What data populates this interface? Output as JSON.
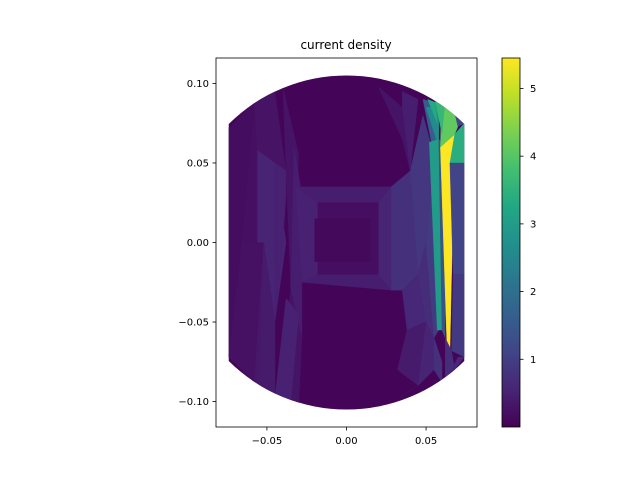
{
  "chart_data": {
    "type": "heatmap",
    "title": "current density",
    "xlabel": "",
    "ylabel": "",
    "xlim": [
      -0.082,
      0.082
    ],
    "ylim": [
      -0.116,
      0.116
    ],
    "xticks": [
      -0.05,
      0.0,
      0.05
    ],
    "xtick_labels": [
      "−0.05",
      "0.00",
      "0.05"
    ],
    "yticks": [
      -0.1,
      -0.05,
      0.0,
      0.05,
      0.1
    ],
    "ytick_labels": [
      "−0.10",
      "−0.05",
      "0.00",
      "0.05",
      "0.10"
    ],
    "colormap": "viridis",
    "colorbar": {
      "range": [
        0.0,
        5.45
      ],
      "ticks": [
        1,
        2,
        3,
        4,
        5
      ],
      "tick_labels": [
        "1",
        "2",
        "3",
        "4",
        "5"
      ]
    },
    "domain": {
      "shape": "circle clipped at left and right",
      "radius": 0.105,
      "x_clip": [
        -0.074,
        0.074
      ]
    },
    "grid": false,
    "background_value": 0.05,
    "cells": [
      {
        "poly": [
          [
            -0.074,
            -0.072
          ],
          [
            -0.074,
            0.072
          ],
          [
            -0.058,
            0.088
          ],
          [
            -0.066,
            0.0
          ]
        ],
        "value": 0.18
      },
      {
        "poly": [
          [
            -0.058,
            0.088
          ],
          [
            -0.052,
            0.0
          ],
          [
            -0.066,
            0.0
          ]
        ],
        "value": 0.22
      },
      {
        "poly": [
          [
            -0.058,
            0.088
          ],
          [
            -0.045,
            0.095
          ],
          [
            -0.038,
            0.045
          ],
          [
            -0.052,
            0.0
          ]
        ],
        "value": 0.28
      },
      {
        "poly": [
          [
            -0.056,
            0.058
          ],
          [
            -0.045,
            0.05
          ],
          [
            -0.038,
            0.0
          ],
          [
            -0.045,
            -0.05
          ],
          [
            -0.056,
            -0.04
          ]
        ],
        "value": 0.55
      },
      {
        "poly": [
          [
            -0.066,
            0.0
          ],
          [
            -0.052,
            0.0
          ],
          [
            -0.058,
            -0.088
          ],
          [
            -0.074,
            -0.072
          ]
        ],
        "value": 0.25
      },
      {
        "poly": [
          [
            -0.052,
            0.0
          ],
          [
            -0.045,
            -0.05
          ],
          [
            -0.045,
            -0.098
          ],
          [
            -0.058,
            -0.088
          ]
        ],
        "value": 0.35
      },
      {
        "poly": [
          [
            -0.045,
            0.05
          ],
          [
            -0.038,
            0.045
          ],
          [
            -0.038,
            0.03
          ],
          [
            -0.04,
            0.0
          ],
          [
            -0.045,
            -0.05
          ]
        ],
        "value": 0.5
      },
      {
        "poly": [
          [
            -0.04,
            0.098
          ],
          [
            -0.03,
            0.055
          ],
          [
            -0.035,
            -0.03
          ],
          [
            -0.038,
            0.045
          ]
        ],
        "value": 0.3
      },
      {
        "poly": [
          [
            -0.033,
            0.06
          ],
          [
            -0.035,
            -0.03
          ],
          [
            -0.028,
            -0.06
          ],
          [
            -0.028,
            0.03
          ]
        ],
        "value": 0.45
      },
      {
        "poly": [
          [
            -0.035,
            -0.03
          ],
          [
            -0.045,
            -0.098
          ],
          [
            -0.03,
            -0.102
          ],
          [
            -0.028,
            -0.06
          ]
        ],
        "value": 0.3
      },
      {
        "poly": [
          [
            -0.038,
            -0.035
          ],
          [
            -0.03,
            -0.045
          ],
          [
            -0.035,
            -0.1
          ],
          [
            -0.045,
            -0.098
          ]
        ],
        "value": 0.5
      },
      {
        "poly": [
          [
            -0.052,
            -0.0
          ],
          [
            -0.045,
            -0.05
          ],
          [
            -0.045,
            -0.095
          ],
          [
            -0.055,
            -0.09
          ]
        ],
        "value": 0.4
      },
      {
        "poly": [
          [
            -0.032,
            0.035
          ],
          [
            -0.018,
            0.025
          ],
          [
            0.02,
            0.025
          ],
          [
            0.028,
            0.035
          ]
        ],
        "value": 0.45
      },
      {
        "poly": [
          [
            -0.032,
            0.035
          ],
          [
            -0.028,
            -0.025
          ],
          [
            -0.018,
            -0.02
          ],
          [
            -0.018,
            0.025
          ]
        ],
        "value": 0.5
      },
      {
        "poly": [
          [
            -0.028,
            -0.025
          ],
          [
            -0.018,
            -0.02
          ],
          [
            0.02,
            -0.02
          ],
          [
            0.028,
            -0.03
          ]
        ],
        "value": 0.45
      },
      {
        "poly": [
          [
            0.028,
            0.035
          ],
          [
            0.02,
            0.025
          ],
          [
            0.02,
            -0.02
          ],
          [
            0.028,
            -0.03
          ]
        ],
        "value": 0.55
      },
      {
        "poly": [
          [
            -0.018,
            0.025
          ],
          [
            0.02,
            0.025
          ],
          [
            0.02,
            -0.02
          ],
          [
            -0.018,
            -0.02
          ]
        ],
        "value": 0.2
      },
      {
        "poly": [
          [
            -0.02,
            0.015
          ],
          [
            0.015,
            0.015
          ],
          [
            0.015,
            -0.012
          ],
          [
            -0.02,
            -0.012
          ]
        ],
        "value": 0.12
      },
      {
        "poly": [
          [
            0.028,
            0.035
          ],
          [
            0.04,
            0.045
          ],
          [
            0.045,
            -0.02
          ],
          [
            0.035,
            -0.03
          ],
          [
            0.028,
            -0.03
          ]
        ],
        "value": 0.75
      },
      {
        "poly": [
          [
            0.035,
            -0.03
          ],
          [
            0.045,
            -0.02
          ],
          [
            0.05,
            -0.05
          ],
          [
            0.038,
            -0.055
          ]
        ],
        "value": 0.6
      },
      {
        "poly": [
          [
            0.04,
            0.045
          ],
          [
            0.048,
            0.08
          ],
          [
            0.055,
            0.055
          ],
          [
            0.05,
            0.0
          ],
          [
            0.045,
            -0.02
          ]
        ],
        "value": 0.85
      },
      {
        "poly": [
          [
            0.02,
            0.098
          ],
          [
            0.035,
            0.085
          ],
          [
            0.04,
            0.045
          ],
          [
            0.035,
            0.065
          ]
        ],
        "value": 0.3
      },
      {
        "poly": [
          [
            0.035,
            0.095
          ],
          [
            0.045,
            0.09
          ],
          [
            0.04,
            0.045
          ],
          [
            0.035,
            0.085
          ]
        ],
        "value": 0.45
      },
      {
        "poly": [
          [
            0.045,
            -0.02
          ],
          [
            0.05,
            0.0
          ],
          [
            0.055,
            -0.06
          ],
          [
            0.05,
            -0.05
          ]
        ],
        "value": 0.7
      },
      {
        "poly": [
          [
            0.032,
            -0.08
          ],
          [
            0.045,
            -0.09
          ],
          [
            0.05,
            -0.05
          ],
          [
            0.038,
            -0.055
          ]
        ],
        "value": 0.4
      },
      {
        "poly": [
          [
            0.033,
            -0.098
          ],
          [
            0.045,
            -0.09
          ],
          [
            0.045,
            -0.09
          ]
        ],
        "value": 0.3
      },
      {
        "poly": [
          [
            0.045,
            -0.09
          ],
          [
            0.055,
            -0.08
          ],
          [
            0.055,
            -0.06
          ],
          [
            0.05,
            -0.05
          ]
        ],
        "value": 0.55
      },
      {
        "poly": [
          [
            0.055,
            -0.06
          ],
          [
            0.06,
            -0.075
          ],
          [
            0.06,
            -0.088
          ],
          [
            0.055,
            -0.08
          ]
        ],
        "value": 0.75
      },
      {
        "poly": [
          [
            0.05,
            0.0
          ],
          [
            0.055,
            0.055
          ],
          [
            0.058,
            0.055
          ],
          [
            0.058,
            -0.055
          ],
          [
            0.055,
            -0.06
          ]
        ],
        "value": 0.95
      },
      {
        "poly": [
          [
            0.048,
            0.09
          ],
          [
            0.055,
            0.088
          ],
          [
            0.057,
            0.055
          ],
          [
            0.055,
            0.055
          ]
        ],
        "value": 1.6
      },
      {
        "poly": [
          [
            0.05,
            0.085
          ],
          [
            0.058,
            0.085
          ],
          [
            0.058,
            0.06
          ]
        ],
        "value": 2.6
      },
      {
        "poly": [
          [
            0.051,
            0.09
          ],
          [
            0.056,
            0.088
          ],
          [
            0.057,
            0.075
          ]
        ],
        "value": 3.3
      },
      {
        "poly": [
          [
            0.052,
            0.063
          ],
          [
            0.058,
            0.065
          ],
          [
            0.06,
            -0.055
          ],
          [
            0.057,
            -0.055
          ]
        ],
        "value": 3.0
      },
      {
        "poly": [
          [
            0.058,
            0.065
          ],
          [
            0.06,
            -0.055
          ],
          [
            0.062,
            -0.06
          ],
          [
            0.062,
            0.06
          ]
        ],
        "value": 1.4
      },
      {
        "poly": [
          [
            0.059,
            0.06
          ],
          [
            0.068,
            0.068
          ],
          [
            0.065,
            -0.068
          ],
          [
            0.063,
            -0.062
          ]
        ],
        "value": 5.45
      },
      {
        "poly": [
          [
            0.06,
            0.1
          ],
          [
            0.066,
            0.09
          ],
          [
            0.07,
            0.073
          ],
          [
            0.068,
            0.068
          ],
          [
            0.059,
            0.06
          ]
        ],
        "value": 4.1
      },
      {
        "poly": [
          [
            0.063,
            0.09
          ],
          [
            0.074,
            0.075
          ],
          [
            0.07,
            0.073
          ],
          [
            0.066,
            0.09
          ]
        ],
        "value": 1.2
      },
      {
        "poly": [
          [
            0.057,
            0.1
          ],
          [
            0.062,
            0.09
          ],
          [
            0.06,
            0.068
          ],
          [
            0.056,
            0.088
          ]
        ],
        "value": 3.6
      },
      {
        "poly": [
          [
            0.068,
            0.068
          ],
          [
            0.074,
            0.075
          ],
          [
            0.074,
            0.05
          ],
          [
            0.065,
            0.05
          ]
        ],
        "value": 3.4
      },
      {
        "poly": [
          [
            0.065,
            0.05
          ],
          [
            0.074,
            0.05
          ],
          [
            0.074,
            -0.02
          ],
          [
            0.067,
            -0.02
          ]
        ],
        "value": 1.1
      },
      {
        "poly": [
          [
            0.067,
            -0.02
          ],
          [
            0.074,
            -0.02
          ],
          [
            0.074,
            -0.072
          ],
          [
            0.066,
            -0.068
          ]
        ],
        "value": 0.9
      },
      {
        "poly": [
          [
            0.062,
            -0.06
          ],
          [
            0.066,
            -0.068
          ],
          [
            0.068,
            -0.08
          ],
          [
            0.062,
            -0.088
          ]
        ],
        "value": 0.7
      },
      {
        "poly": [
          [
            0.062,
            -0.088
          ],
          [
            0.068,
            -0.08
          ],
          [
            0.074,
            -0.072
          ],
          [
            0.07,
            -0.072
          ]
        ],
        "value": 0.6
      }
    ]
  }
}
